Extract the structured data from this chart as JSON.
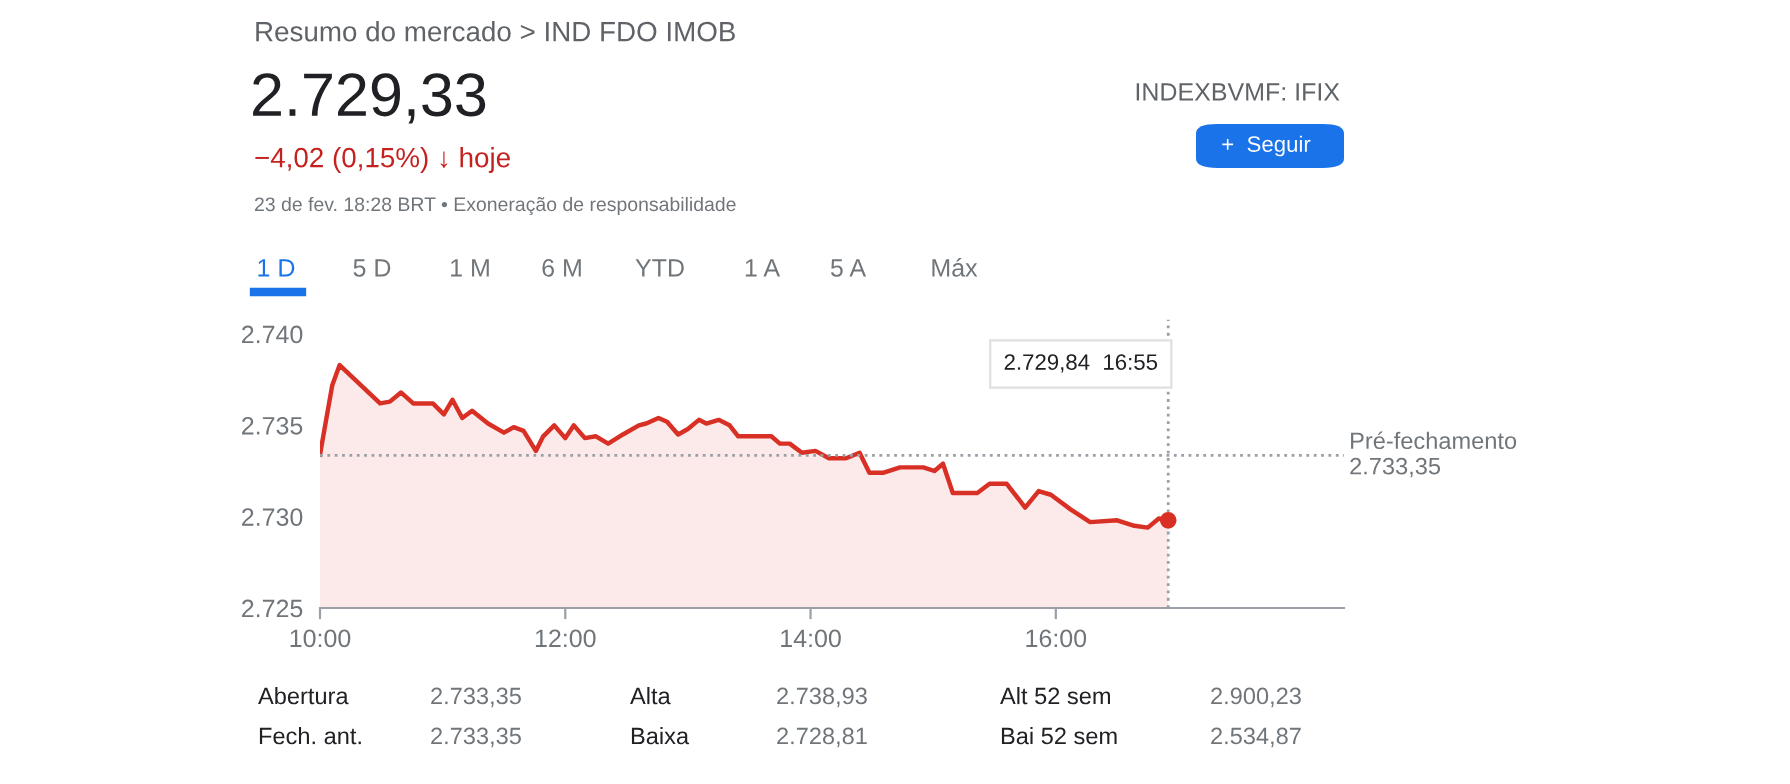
{
  "chart_data": {
    "type": "area",
    "x": [
      10.0,
      10.1,
      10.16,
      10.49,
      10.57,
      10.66,
      10.76,
      10.92,
      11.01,
      11.08,
      11.16,
      11.24,
      11.37,
      11.5,
      11.58,
      11.66,
      11.76,
      11.82,
      11.91,
      12.0,
      12.07,
      12.16,
      12.25,
      12.35,
      12.47,
      12.6,
      12.66,
      12.76,
      12.83,
      12.92,
      13.0,
      13.09,
      13.15,
      13.25,
      13.34,
      13.41,
      13.59,
      13.68,
      13.75,
      13.83,
      13.93,
      14.04,
      14.15,
      14.29,
      14.4,
      14.48,
      14.59,
      14.73,
      14.92,
      15.01,
      15.08,
      15.16,
      15.36,
      15.46,
      15.6,
      15.75,
      15.86,
      15.96,
      16.12,
      16.28,
      16.5,
      16.64,
      16.75,
      16.84,
      16.9167
    ],
    "series": [
      {
        "color": "#d93025",
        "values": [
          2733.4,
          2737.2,
          2738.3,
          2736.2,
          2736.3,
          2736.8,
          2736.2,
          2736.2,
          2735.6,
          2736.4,
          2735.4,
          2735.8,
          2735.1,
          2734.6,
          2734.9,
          2734.7,
          2733.6,
          2734.4,
          2735.0,
          2734.3,
          2735.0,
          2734.3,
          2734.4,
          2734.0,
          2734.5,
          2735.0,
          2735.1,
          2735.4,
          2735.2,
          2734.5,
          2734.8,
          2735.3,
          2735.1,
          2735.3,
          2735.0,
          2734.4,
          2734.4,
          2734.4,
          2734.0,
          2734.0,
          2733.5,
          2733.6,
          2733.2,
          2733.2,
          2733.5,
          2732.4,
          2732.4,
          2732.7,
          2732.7,
          2732.5,
          2732.9,
          2731.3,
          2731.3,
          2731.8,
          2731.8,
          2730.5,
          2731.4,
          2731.2,
          2730.4,
          2729.7,
          2729.8,
          2729.5,
          2729.4,
          2729.9,
          2729.8
        ]
      }
    ],
    "xlim": [
      10,
      18.35
    ],
    "xticks": [
      {
        "value": 10,
        "label": "10:00"
      },
      {
        "value": 12,
        "label": "12:00"
      },
      {
        "value": 14,
        "label": "14:00"
      },
      {
        "value": 16,
        "label": "16:00"
      }
    ],
    "ylim": [
      2725,
      2740.8
    ],
    "yticks": [
      {
        "value": 2725,
        "label": "2.725"
      },
      {
        "value": 2730,
        "label": "2.730"
      },
      {
        "value": 2735,
        "label": "2.735"
      },
      {
        "value": 2740,
        "label": "2.740"
      }
    ],
    "grid": false,
    "legend": false,
    "ref_lines": [
      {
        "axis": "y",
        "value": 2733.35,
        "label": "Pré-fechamento\n2.733,35",
        "color": "#9aa0a6",
        "line_style": "dotted"
      },
      {
        "axis": "x",
        "value": 16.9167,
        "label": null,
        "color": "#9aa0a6",
        "line_style": "dotted"
      }
    ],
    "annotations": [
      "Resumo do mercado > IND FDO IMOB",
      "2.729,33",
      "−4,02 (0,15%) ↓ hoje",
      "23 de fev. 18:28 BRT • Exoneração de responsabilidade",
      "INDEXBVMF: IFIX",
      "+  Seguir",
      "1 D",
      "5 D",
      "1 M",
      "6 M",
      "YTD",
      "1 A",
      "5 A",
      "Máx",
      "Abertura",
      "2.733,35",
      "Alta",
      "2.738,93",
      "Alt 52 sem",
      "2.900,23",
      "Fech. ant.",
      "2.733,35",
      "Baixa",
      "2.728,81",
      "Bai 52 sem",
      "2.534,87",
      "2.729,84  16:55"
    ]
  }
}
